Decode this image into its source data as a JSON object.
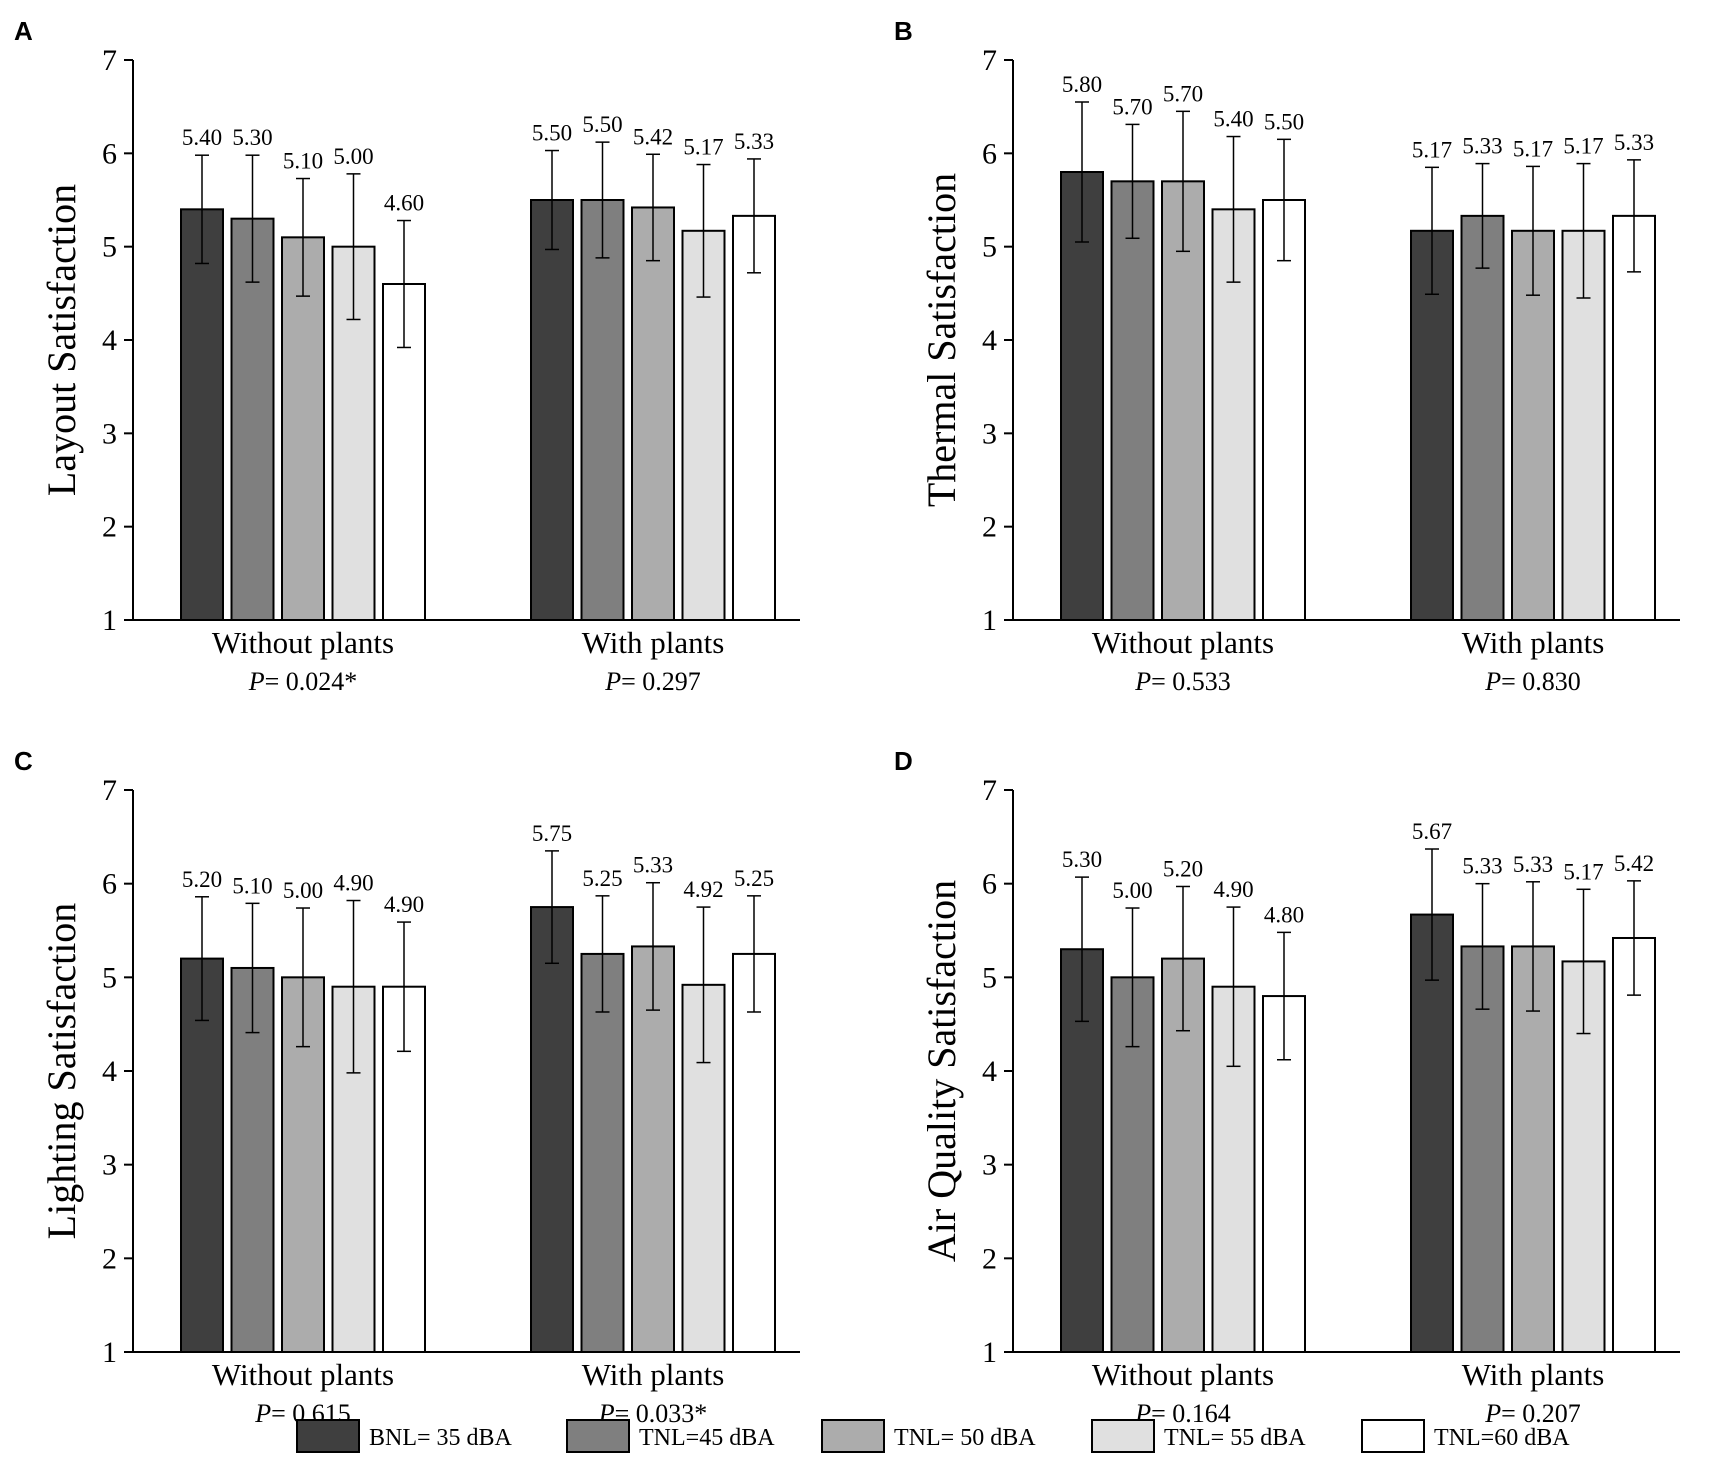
{
  "legend": [
    {
      "label": "BNL= 35 dBA",
      "color": "#3f3f3f"
    },
    {
      "label": "TNL=45 dBA",
      "color": "#7f7f7f"
    },
    {
      "label": "TNL= 50 dBA",
      "color": "#acacac"
    },
    {
      "label": "TNL= 55 dBA",
      "color": "#e0e0e0"
    },
    {
      "label": "TNL=60 dBA",
      "color": "#ffffff"
    }
  ],
  "chart_data": [
    {
      "panel": "A",
      "type": "bar",
      "ylabel": "Layout Satisfaction",
      "ylim": [
        1,
        7
      ],
      "yticks": [
        "1",
        "2",
        "3",
        "4",
        "5",
        "6",
        "7"
      ],
      "categories": [
        "Without plants",
        "With plants"
      ],
      "p_values": [
        "0.024*",
        "0.297"
      ],
      "values": [
        [
          5.4,
          5.3,
          5.1,
          5.0,
          4.6
        ],
        [
          5.5,
          5.5,
          5.42,
          5.17,
          5.33
        ]
      ],
      "labels": [
        [
          "5.40",
          "5.30",
          "5.10",
          "5.00",
          "4.60"
        ],
        [
          "5.50",
          "5.50",
          "5.42",
          "5.17",
          "5.33"
        ]
      ],
      "errors": [
        [
          0.58,
          0.68,
          0.63,
          0.78,
          0.68
        ],
        [
          0.53,
          0.62,
          0.57,
          0.71,
          0.61
        ]
      ]
    },
    {
      "panel": "B",
      "type": "bar",
      "ylabel": "Thermal  Satisfaction",
      "ylim": [
        1,
        7
      ],
      "yticks": [
        "1",
        "2",
        "3",
        "4",
        "5",
        "6",
        "7"
      ],
      "categories": [
        "Without plants",
        "With plants"
      ],
      "p_values": [
        "0.533",
        "0.830"
      ],
      "values": [
        [
          5.8,
          5.7,
          5.7,
          5.4,
          5.5
        ],
        [
          5.17,
          5.33,
          5.17,
          5.17,
          5.33
        ]
      ],
      "labels": [
        [
          "5.80",
          "5.70",
          "5.70",
          "5.40",
          "5.50"
        ],
        [
          "5.17",
          "5.33",
          "5.17",
          "5.17",
          "5.33"
        ]
      ],
      "errors": [
        [
          0.75,
          0.61,
          0.75,
          0.78,
          0.65
        ],
        [
          0.68,
          0.56,
          0.69,
          0.72,
          0.6
        ]
      ]
    },
    {
      "panel": "C",
      "type": "bar",
      "ylabel": "Lighting Satisfaction",
      "ylim": [
        1,
        7
      ],
      "yticks": [
        "1",
        "2",
        "3",
        "4",
        "5",
        "6",
        "7"
      ],
      "categories": [
        "Without plants",
        "With plants"
      ],
      "p_values": [
        "0.615",
        "0.033*"
      ],
      "values": [
        [
          5.2,
          5.1,
          5.0,
          4.9,
          4.9
        ],
        [
          5.75,
          5.25,
          5.33,
          4.92,
          5.25
        ]
      ],
      "labels": [
        [
          "5.20",
          "5.10",
          "5.00",
          "4.90",
          "4.90"
        ],
        [
          "5.75",
          "5.25",
          "5.33",
          "4.92",
          "5.25"
        ]
      ],
      "errors": [
        [
          0.66,
          0.69,
          0.74,
          0.92,
          0.69
        ],
        [
          0.6,
          0.62,
          0.68,
          0.83,
          0.62
        ]
      ]
    },
    {
      "panel": "D",
      "type": "bar",
      "ylabel": "Air Quality Satisfaction",
      "ylim": [
        1,
        7
      ],
      "yticks": [
        "1",
        "2",
        "3",
        "4",
        "5",
        "6",
        "7"
      ],
      "categories": [
        "Without plants",
        "With plants"
      ],
      "p_values": [
        "0.164",
        "0.207"
      ],
      "values": [
        [
          5.3,
          5.0,
          5.2,
          4.9,
          4.8
        ],
        [
          5.67,
          5.33,
          5.33,
          5.17,
          5.42
        ]
      ],
      "labels": [
        [
          "5.30",
          "5.00",
          "5.20",
          "4.90",
          "4.80"
        ],
        [
          "5.67",
          "5.33",
          "5.33",
          "5.17",
          "5.42"
        ]
      ],
      "errors": [
        [
          0.77,
          0.74,
          0.77,
          0.85,
          0.68
        ],
        [
          0.7,
          0.67,
          0.69,
          0.77,
          0.61
        ]
      ]
    }
  ]
}
